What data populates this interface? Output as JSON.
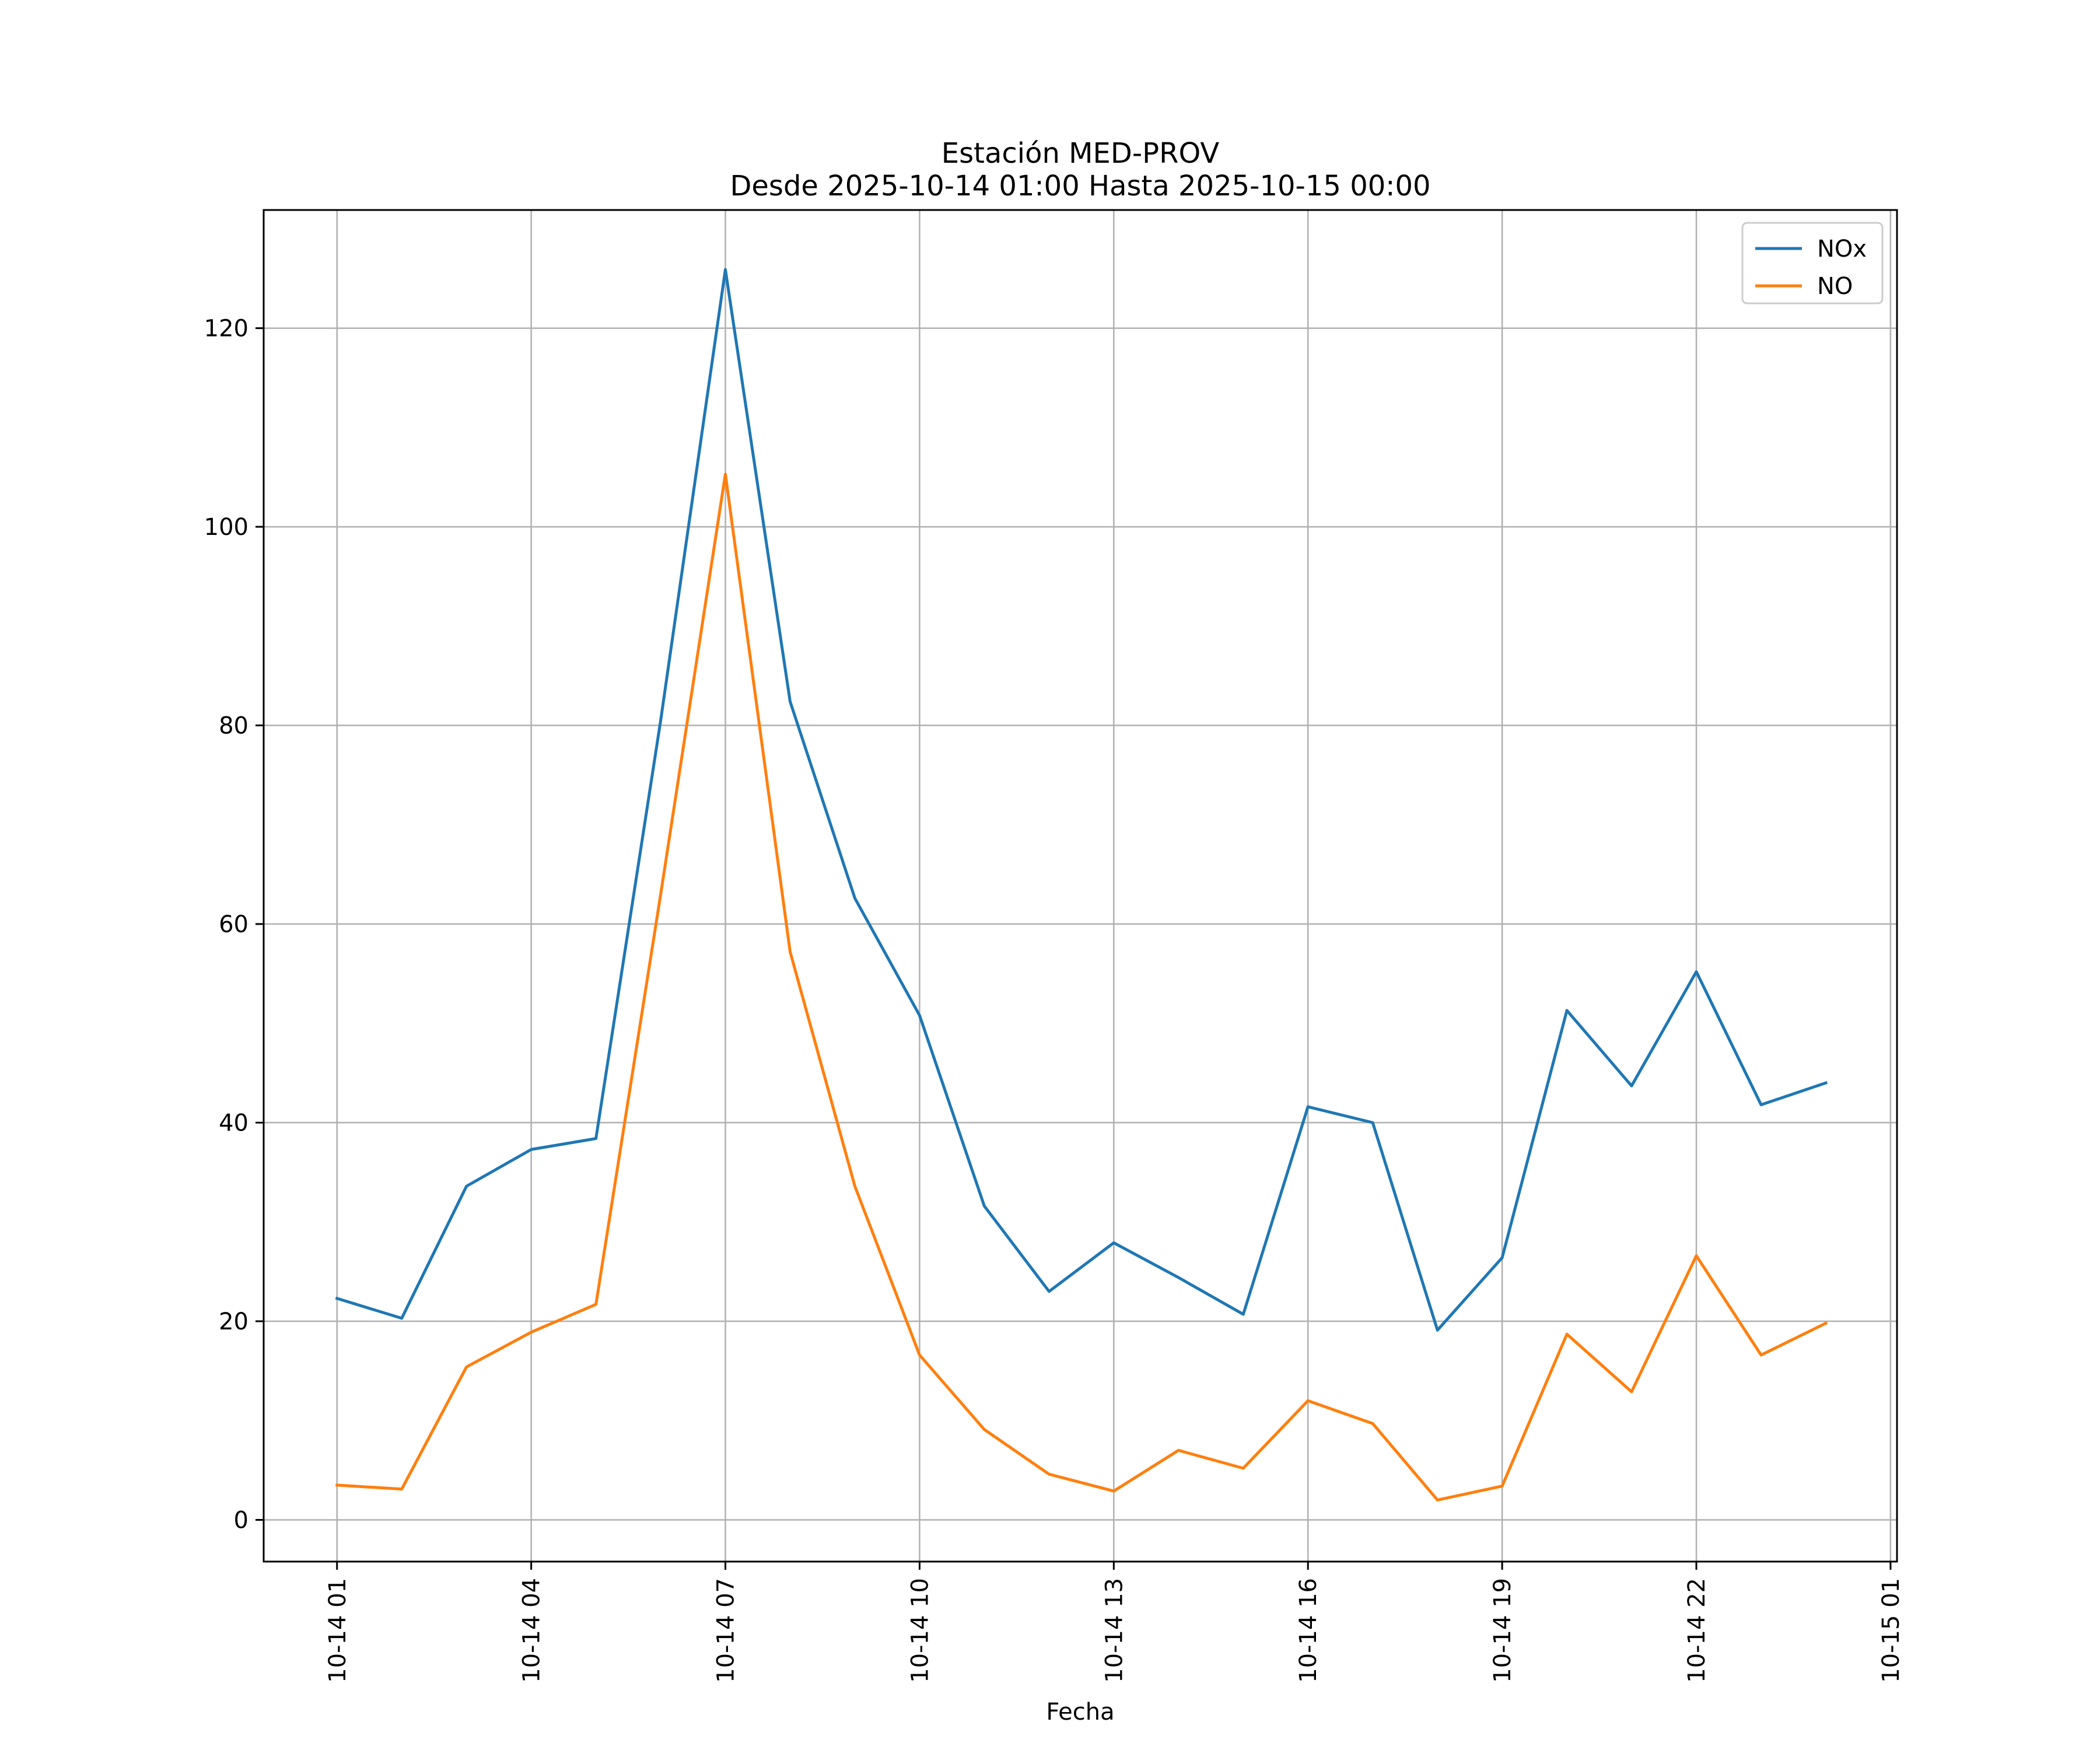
{
  "chart_data": {
    "type": "line",
    "title": "Estación MED-PROV",
    "subtitle": "Desde 2025-10-14 01:00 Hasta 2025-10-15 00:00",
    "xlabel": "Fecha",
    "ylabel": "",
    "grid": true,
    "legend_position": "top-right",
    "x_ticks": [
      "10-14 01",
      "10-14 04",
      "10-14 07",
      "10-14 10",
      "10-14 13",
      "10-14 16",
      "10-14 19",
      "10-14 22",
      "10-15 01"
    ],
    "y_ticks": [
      0,
      20,
      40,
      60,
      80,
      100,
      120
    ],
    "xlim": [
      "2025-10-13 23:52",
      "2025-10-15 01:06"
    ],
    "ylim": [
      -4.2,
      131.9
    ],
    "x": [
      "2025-10-14 01:00",
      "2025-10-14 02:00",
      "2025-10-14 03:00",
      "2025-10-14 04:00",
      "2025-10-14 05:00",
      "2025-10-14 06:00",
      "2025-10-14 07:00",
      "2025-10-14 08:00",
      "2025-10-14 09:00",
      "2025-10-14 10:00",
      "2025-10-14 11:00",
      "2025-10-14 12:00",
      "2025-10-14 13:00",
      "2025-10-14 14:00",
      "2025-10-14 15:00",
      "2025-10-14 16:00",
      "2025-10-14 17:00",
      "2025-10-14 18:00",
      "2025-10-14 19:00",
      "2025-10-14 20:00",
      "2025-10-14 21:00",
      "2025-10-14 22:00",
      "2025-10-14 23:00",
      "2025-10-15 00:00"
    ],
    "series": [
      {
        "name": "NOx",
        "color": "#1f77b4",
        "values": [
          22.3,
          20.3,
          33.6,
          37.3,
          38.4,
          80.5,
          125.9,
          82.4,
          62.6,
          50.8,
          31.6,
          23.0,
          27.9,
          24.4,
          20.7,
          41.6,
          40.0,
          19.1,
          26.4,
          51.3,
          43.7,
          55.2,
          41.8,
          44.0
        ]
      },
      {
        "name": "NO",
        "color": "#ff7f0e",
        "values": [
          3.5,
          3.1,
          15.4,
          18.9,
          21.7,
          63.0,
          105.3,
          57.2,
          33.6,
          16.6,
          9.1,
          4.6,
          2.9,
          7.0,
          5.2,
          12.0,
          9.7,
          2.0,
          3.4,
          18.7,
          12.9,
          26.6,
          16.6,
          19.8
        ]
      }
    ]
  }
}
